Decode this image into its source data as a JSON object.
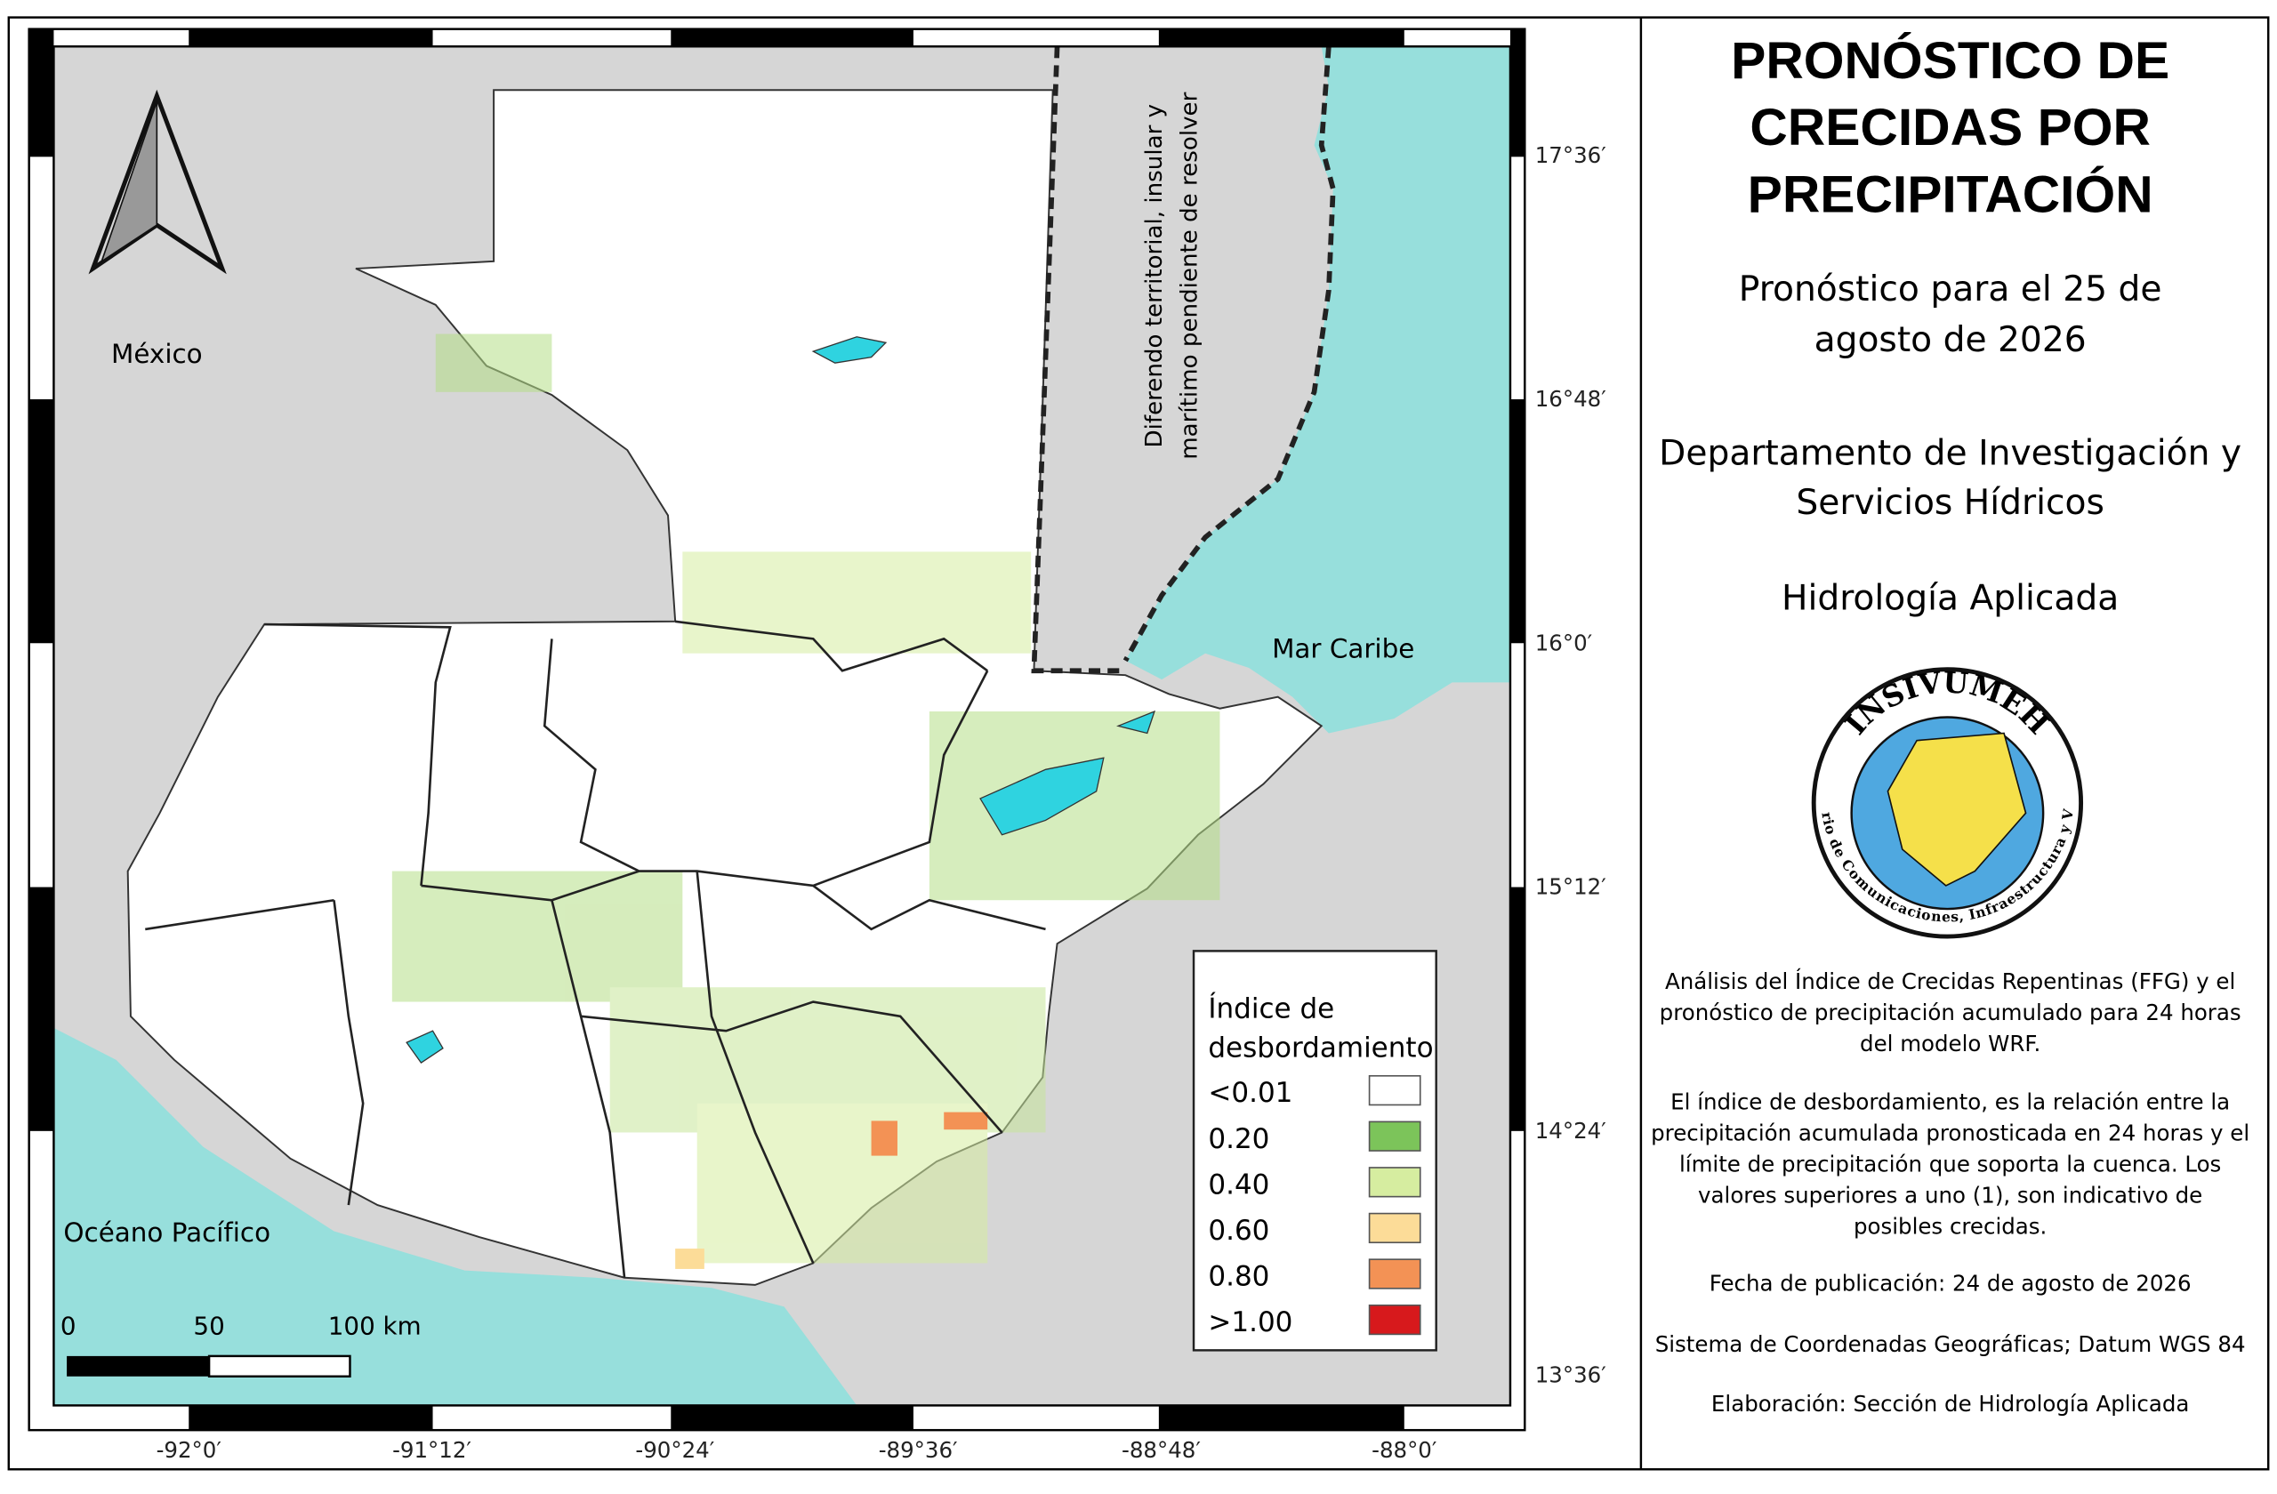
{
  "map": {
    "title_lines": [
      "PRONÓSTICO DE",
      "CRECIDAS POR",
      "PRECIPITACIÓN"
    ],
    "subtitle_lines": [
      "Pronóstico para el 25 de",
      "agosto de 2026"
    ],
    "department_lines": [
      "Departamento de Investigación y",
      "Servicios Hídricos"
    ],
    "section": "Hidrología Aplicada",
    "logo": {
      "name": "INSIVUMEH",
      "ministry": "Ministerio de Comunicaciones, Infraestructura y Vivienda"
    },
    "description_lines": [
      "Análisis del Índice de Crecidas Repentinas (FFG) y el",
      "pronóstico de precipitación acumulado para 24 horas",
      "del modelo WRF."
    ],
    "explanation_lines": [
      "El índice de desbordamiento, es la relación entre la",
      "precipitación acumulada pronosticada en 24 horas y el",
      "límite de precipitación que soporta la cuenca. Los",
      "valores superiores a uno (1), son indicativo de",
      "posibles crecidas."
    ],
    "publication_date": "Fecha de publicación: 24 de agosto de 2026",
    "coordinate_system": "Sistema de Coordenadas Geográficas; Datum WGS 84",
    "prepared_by": "Elaboración: Sección de Hidrología Aplicada",
    "place_labels": {
      "mexico": "México",
      "caribbean": "Mar Caribe",
      "pacific": "Océano Pacífico"
    },
    "dispute_lines": [
      "Diferendo territorial, insular y",
      "marítimo pendiente de resolver"
    ],
    "lat_ticks": [
      "17°36′",
      "16°48′",
      "16°0′",
      "15°12′",
      "14°24′",
      "13°36′"
    ],
    "lon_ticks": [
      "-92°0′",
      "-91°12′",
      "-90°24′",
      "-89°36′",
      "-88°48′",
      "-88°0′"
    ],
    "scale_labels": [
      "0",
      "50",
      "100 km"
    ],
    "legend": {
      "title_lines": [
        "Índice de",
        "desbordamiento"
      ],
      "items": [
        {
          "label": "<0.01",
          "color": "#ffffff"
        },
        {
          "label": "0.20",
          "color": "#7cc45a"
        },
        {
          "label": "0.40",
          "color": "#d6eda0"
        },
        {
          "label": "0.60",
          "color": "#fcdc98"
        },
        {
          "label": "0.80",
          "color": "#f39255"
        },
        {
          "label": ">1.00",
          "color": "#d7191c"
        }
      ]
    }
  }
}
